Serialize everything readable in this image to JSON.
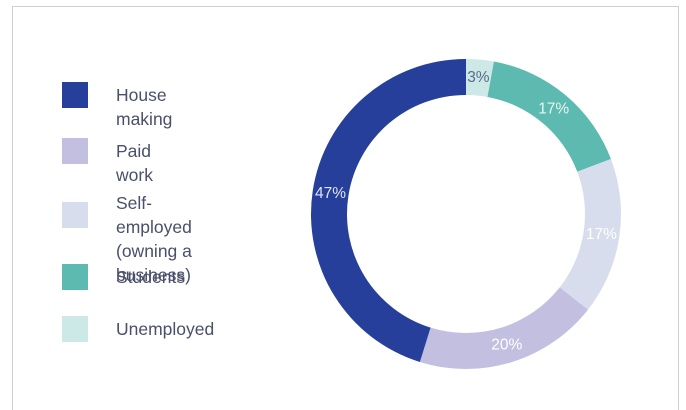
{
  "chart_data": {
    "type": "pie",
    "variant": "donut",
    "title": "",
    "legend_position": "left",
    "slices": [
      {
        "label": "Unemployed",
        "value": 3,
        "pct_label": "3%",
        "color": "#cde9e7",
        "text_color": "#5a6a8a"
      },
      {
        "label": "Students",
        "value": 17,
        "pct_label": "17%",
        "color": "#5cbab0",
        "text_color": "#e8f6f4"
      },
      {
        "label": "Self-employed (owning a business)",
        "value": 17,
        "pct_label": "17%",
        "color": "#d7dded",
        "text_color": "#ffffff"
      },
      {
        "label": "Paid work",
        "value": 20,
        "pct_label": "20%",
        "color": "#c3bfe0",
        "text_color": "#ffffff"
      },
      {
        "label": "House making",
        "value": 47,
        "pct_label": "47%",
        "color": "#253f9a",
        "text_color": "#dfe5f5"
      }
    ]
  },
  "legend": [
    {
      "label": "House making",
      "color": "#253f9a"
    },
    {
      "label": "Paid work",
      "color": "#c3bfe0"
    },
    {
      "label": "Self-employed\n(owning a business)",
      "color": "#d7dded"
    },
    {
      "label": "Students",
      "color": "#5cbab0"
    },
    {
      "label": "Unemployed",
      "color": "#cde9e7"
    }
  ]
}
